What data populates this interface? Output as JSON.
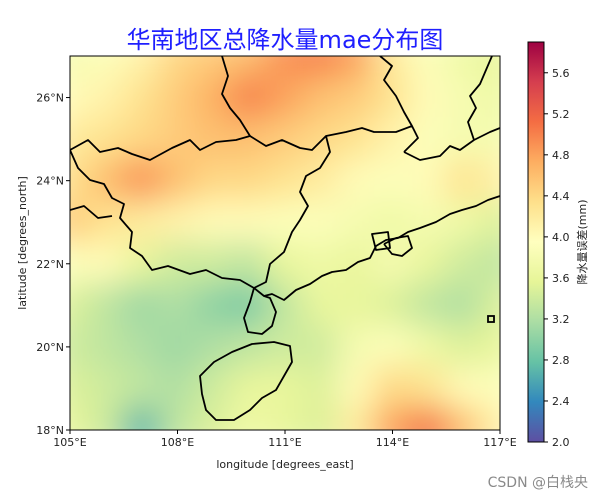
{
  "chart_data": {
    "type": "heatmap",
    "title": "华南地区总降水量mae分布图",
    "xlabel": "longitude [degrees_east]",
    "ylabel": "latitude [degrees_north]",
    "xlim": [
      105,
      117
    ],
    "ylim": [
      18,
      27
    ],
    "xticks": [
      105,
      108,
      111,
      114,
      117
    ],
    "xtick_labels": [
      "105°E",
      "108°E",
      "111°E",
      "114°E",
      "117°E"
    ],
    "yticks": [
      18,
      20,
      22,
      24,
      26
    ],
    "ytick_labels": [
      "18°N",
      "20°N",
      "22°N",
      "24°N",
      "26°N"
    ],
    "colorbar": {
      "label": "降水量误差(mm)",
      "range": [
        2.0,
        5.9
      ],
      "ticks": [
        2.0,
        2.4,
        2.8,
        3.2,
        3.6,
        4.0,
        4.4,
        4.8,
        5.2,
        5.6
      ],
      "tick_labels": [
        "2.0",
        "2.4",
        "2.8",
        "3.2",
        "3.6",
        "4.0",
        "4.4",
        "4.8",
        "5.2",
        "5.6"
      ],
      "colormap": "Spectral_r"
    },
    "field_lon": [
      105,
      106,
      107,
      108,
      109,
      110,
      111,
      112,
      113,
      114,
      115,
      116,
      117
    ],
    "field_lat": [
      27,
      26,
      25,
      24,
      23,
      22,
      21,
      20,
      19,
      18
    ],
    "field_values": [
      [
        3.8,
        3.9,
        4.1,
        4.4,
        4.5,
        4.6,
        4.9,
        5.0,
        4.8,
        4.2,
        3.9,
        3.7,
        3.6
      ],
      [
        4.0,
        4.1,
        4.3,
        4.5,
        4.7,
        5.0,
        4.8,
        4.6,
        4.5,
        4.3,
        4.0,
        3.8,
        3.7
      ],
      [
        4.2,
        4.3,
        4.4,
        4.5,
        4.6,
        4.6,
        4.5,
        4.4,
        4.3,
        4.1,
        3.9,
        3.8,
        3.8
      ],
      [
        4.3,
        4.6,
        4.9,
        4.6,
        4.4,
        4.4,
        4.3,
        4.2,
        4.0,
        3.9,
        4.0,
        4.3,
        4.1
      ],
      [
        4.5,
        4.3,
        4.2,
        4.1,
        4.0,
        4.0,
        3.9,
        3.9,
        3.8,
        3.7,
        3.8,
        3.7,
        3.5
      ],
      [
        3.9,
        4.0,
        3.6,
        3.4,
        3.4,
        3.3,
        3.6,
        3.7,
        3.6,
        3.8,
        3.6,
        3.4,
        3.3
      ],
      [
        3.5,
        3.3,
        3.1,
        3.2,
        3.0,
        2.9,
        3.3,
        3.6,
        3.6,
        3.5,
        3.3,
        3.2,
        3.5
      ],
      [
        3.4,
        3.3,
        3.2,
        3.1,
        3.2,
        3.3,
        3.4,
        3.4,
        3.8,
        3.9,
        3.7,
        3.5,
        3.6
      ],
      [
        3.5,
        3.4,
        3.3,
        3.2,
        3.4,
        3.6,
        3.6,
        3.5,
        4.0,
        4.4,
        4.3,
        4.0,
        3.9
      ],
      [
        3.6,
        3.4,
        2.7,
        3.3,
        3.5,
        3.7,
        3.6,
        3.5,
        4.2,
        4.8,
        5.1,
        4.6,
        4.1
      ]
    ],
    "boundaries": "Guangxi / Guangdong / Hainan province outlines and coastline"
  },
  "watermark": "CSDN @白栈央"
}
